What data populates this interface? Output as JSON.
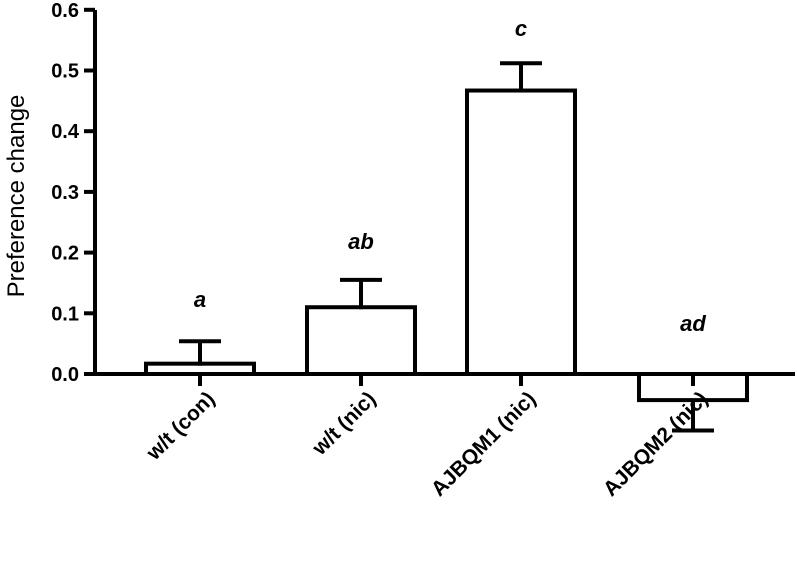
{
  "chart_data": {
    "type": "bar",
    "title": "",
    "xlabel": "",
    "ylabel": "Preference change",
    "ylim": [
      -0.1,
      0.6
    ],
    "yticks": [
      "0.0",
      "0.1",
      "0.2",
      "0.3",
      "0.4",
      "0.5",
      "0.6"
    ],
    "categories": [
      "w/t (con)",
      "w/t (nic)",
      "AJBQM1 (nic)",
      "AJBQM2 (nic)"
    ],
    "values": [
      0.017,
      0.11,
      0.467,
      -0.043
    ],
    "errors": [
      0.037,
      0.045,
      0.045,
      0.05
    ],
    "significance_labels": [
      "a",
      "ab",
      "c",
      "ad"
    ],
    "grid": false,
    "bar_fill": "#ffffff",
    "bar_stroke": "#000000"
  }
}
